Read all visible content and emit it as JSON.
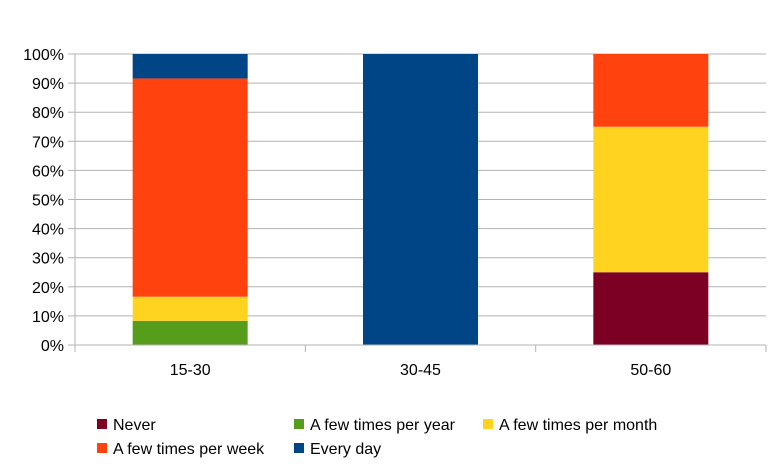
{
  "chart_data": {
    "type": "bar",
    "stacked": true,
    "percent": true,
    "categories": [
      "15-30",
      "30-45",
      "50-60"
    ],
    "ylim": [
      0,
      100
    ],
    "y_ticks": [
      "0%",
      "10%",
      "20%",
      "30%",
      "40%",
      "50%",
      "60%",
      "70%",
      "80%",
      "90%",
      "100%"
    ],
    "grid": true,
    "legend_position": "bottom",
    "series": [
      {
        "name": "Never",
        "color": "#7b0023",
        "values": [
          0,
          0,
          25
        ]
      },
      {
        "name": "A few times per year",
        "color": "#579d1c",
        "values": [
          8.3,
          0,
          0
        ]
      },
      {
        "name": "A few times per month",
        "color": "#ffd320",
        "values": [
          8.3,
          0,
          50
        ]
      },
      {
        "name": "A few times per week",
        "color": "#ff420e",
        "values": [
          75,
          0,
          25
        ]
      },
      {
        "name": "Every day",
        "color": "#004586",
        "values": [
          8.4,
          100,
          0
        ]
      }
    ]
  }
}
